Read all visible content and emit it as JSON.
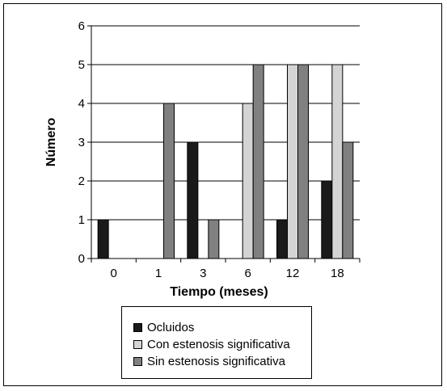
{
  "chart_data": {
    "type": "bar",
    "xlabel": "Tiempo (meses)",
    "ylabel": "Número",
    "ylim": [
      0,
      6
    ],
    "yticks": [
      "0",
      "1",
      "2",
      "3",
      "4",
      "5",
      "6"
    ],
    "categories": [
      "0",
      "1",
      "3",
      "6",
      "12",
      "18"
    ],
    "grid": true,
    "legend_position": "bottom",
    "series": [
      {
        "name": "Ocluidos",
        "color": "#1a1a1a",
        "values": [
          1,
          0,
          3,
          0,
          1,
          2
        ]
      },
      {
        "name": "Con estenosis significativa",
        "color": "#d4d4d4",
        "values": [
          0,
          0,
          0,
          4,
          5,
          5
        ]
      },
      {
        "name": "Sin estenosis significativa",
        "color": "#808080",
        "values": [
          0,
          4,
          1,
          5,
          5,
          3
        ]
      }
    ]
  }
}
